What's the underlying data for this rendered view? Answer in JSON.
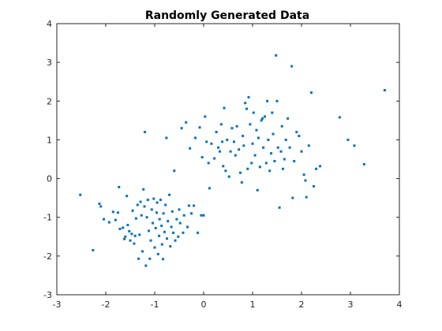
{
  "chart_data": {
    "type": "scatter",
    "title": "Randomly Generated Data",
    "xlabel": "",
    "ylabel": "",
    "xlim": [
      -3,
      4
    ],
    "ylim": [
      -3,
      4
    ],
    "x_ticks": [
      -3,
      -2,
      -1,
      0,
      1,
      2,
      3,
      4
    ],
    "y_ticks": [
      -3,
      -2,
      -1,
      0,
      1,
      2,
      3,
      4
    ],
    "grid": false,
    "marker_color": "#0072BD",
    "series": [
      {
        "points": [
          [
            -2.52,
            -0.42
          ],
          [
            -2.26,
            -1.85
          ],
          [
            -2.13,
            -0.65
          ],
          [
            -2.1,
            -0.72
          ],
          [
            -2.04,
            -1.05
          ],
          [
            -1.93,
            -1.13
          ],
          [
            -1.85,
            -0.86
          ],
          [
            -1.8,
            -1.07
          ],
          [
            -1.75,
            -0.88
          ],
          [
            -1.73,
            -0.22
          ],
          [
            -1.71,
            -1.3
          ],
          [
            -1.65,
            -1.27
          ],
          [
            -1.62,
            -1.56
          ],
          [
            -1.6,
            -1.5
          ],
          [
            -1.57,
            -0.45
          ],
          [
            -1.55,
            -1.2
          ],
          [
            -1.52,
            -1.36
          ],
          [
            -1.5,
            -1.6
          ],
          [
            -1.47,
            -1.43
          ],
          [
            -1.45,
            -0.83
          ],
          [
            -1.42,
            -1.68
          ],
          [
            -1.4,
            -1.48
          ],
          [
            -1.38,
            -1.03
          ],
          [
            -1.35,
            -0.68
          ],
          [
            -1.33,
            -2.07
          ],
          [
            -1.31,
            -1.45
          ],
          [
            -1.29,
            -0.6
          ],
          [
            -1.27,
            -0.95
          ],
          [
            -1.25,
            -1.88
          ],
          [
            -1.23,
            -0.28
          ],
          [
            -1.21,
            -0.72
          ],
          [
            -1.2,
            1.2
          ],
          [
            -1.18,
            -2.25
          ],
          [
            -1.16,
            -1.0
          ],
          [
            -1.14,
            -0.55
          ],
          [
            -1.12,
            -1.35
          ],
          [
            -1.1,
            -2.07
          ],
          [
            -1.08,
            -1.6
          ],
          [
            -1.06,
            -0.8
          ],
          [
            -1.04,
            -1.15
          ],
          [
            -1.02,
            -0.52
          ],
          [
            -1.0,
            -1.78
          ],
          [
            -0.98,
            -1.28
          ],
          [
            -0.96,
            -0.88
          ],
          [
            -0.95,
            -0.62
          ],
          [
            -0.93,
            -1.95
          ],
          [
            -0.91,
            -1.48
          ],
          [
            -0.9,
            -1.05
          ],
          [
            -0.88,
            -0.55
          ],
          [
            -0.86,
            -1.22
          ],
          [
            -0.85,
            -1.7
          ],
          [
            -0.83,
            -2.08
          ],
          [
            -0.82,
            -0.9
          ],
          [
            -0.8,
            -1.38
          ],
          [
            -0.78,
            -0.68
          ],
          [
            -0.76,
            1.05
          ],
          [
            -0.75,
            -1.55
          ],
          [
            -0.73,
            -1.1
          ],
          [
            -0.7,
            -0.42
          ],
          [
            -0.68,
            -1.75
          ],
          [
            -0.66,
            -1.25
          ],
          [
            -0.64,
            -0.85
          ],
          [
            -0.62,
            -1.4
          ],
          [
            -0.6,
            0.2
          ],
          [
            -0.58,
            -1.6
          ],
          [
            -0.55,
            -1.05
          ],
          [
            -0.52,
            -1.5
          ],
          [
            -0.5,
            -0.8
          ],
          [
            -0.48,
            -1.15
          ],
          [
            -0.45,
            1.3
          ],
          [
            -0.42,
            -1.4
          ],
          [
            -0.4,
            -0.95
          ],
          [
            -0.36,
            1.45
          ],
          [
            -0.33,
            -1.25
          ],
          [
            -0.3,
            -0.7
          ],
          [
            -0.28,
            0.78
          ],
          [
            -0.25,
            -0.9
          ],
          [
            -0.2,
            -0.7
          ],
          [
            -0.17,
            1.05
          ],
          [
            -0.12,
            -1.4
          ],
          [
            -0.08,
            1.32
          ],
          [
            -0.05,
            -0.95
          ],
          [
            -0.03,
            0.55
          ],
          [
            0.0,
            -0.95
          ],
          [
            0.03,
            1.6
          ],
          [
            0.06,
            0.95
          ],
          [
            0.1,
            0.4
          ],
          [
            0.12,
            -0.25
          ],
          [
            0.16,
            0.9
          ],
          [
            0.22,
            0.52
          ],
          [
            0.26,
            1.2
          ],
          [
            0.3,
            0.8
          ],
          [
            0.33,
            0.7
          ],
          [
            0.36,
            1.4
          ],
          [
            0.38,
            0.95
          ],
          [
            0.4,
            0.32
          ],
          [
            0.42,
            1.82
          ],
          [
            0.45,
            0.2
          ],
          [
            0.48,
            1.0
          ],
          [
            0.52,
            0.05
          ],
          [
            0.55,
            0.7
          ],
          [
            0.58,
            1.3
          ],
          [
            0.62,
            0.95
          ],
          [
            0.65,
            0.6
          ],
          [
            0.68,
            1.35
          ],
          [
            0.72,
            0.75
          ],
          [
            0.75,
            0.15
          ],
          [
            0.78,
            -0.1
          ],
          [
            0.8,
            1.1
          ],
          [
            0.82,
            0.85
          ],
          [
            0.85,
            1.95
          ],
          [
            0.88,
            1.8
          ],
          [
            0.9,
            0.25
          ],
          [
            0.92,
            2.1
          ],
          [
            0.95,
            1.4
          ],
          [
            0.98,
            0.4
          ],
          [
            1.0,
            0.9
          ],
          [
            1.02,
            1.7
          ],
          [
            1.05,
            0.6
          ],
          [
            1.08,
            1.25
          ],
          [
            1.1,
            -0.3
          ],
          [
            1.12,
            1.05
          ],
          [
            1.15,
            0.3
          ],
          [
            1.18,
            1.5
          ],
          [
            1.2,
            1.55
          ],
          [
            1.22,
            0.8
          ],
          [
            1.25,
            1.6
          ],
          [
            1.28,
            0.4
          ],
          [
            1.3,
            2.0
          ],
          [
            1.32,
            1.0
          ],
          [
            1.35,
            0.2
          ],
          [
            1.38,
            0.65
          ],
          [
            1.4,
            1.7
          ],
          [
            1.42,
            1.15
          ],
          [
            1.45,
            0.45
          ],
          [
            1.48,
            3.18
          ],
          [
            1.5,
            2.0
          ],
          [
            1.52,
            0.8
          ],
          [
            1.55,
            -0.75
          ],
          [
            1.58,
            0.7
          ],
          [
            1.6,
            1.35
          ],
          [
            1.62,
            0.25
          ],
          [
            1.65,
            0.5
          ],
          [
            1.68,
            1.0
          ],
          [
            1.72,
            1.55
          ],
          [
            1.76,
            0.8
          ],
          [
            1.8,
            2.9
          ],
          [
            1.82,
            -0.5
          ],
          [
            1.85,
            0.45
          ],
          [
            1.9,
            1.2
          ],
          [
            1.95,
            1.1
          ],
          [
            2.0,
            0.7
          ],
          [
            2.05,
            0.1
          ],
          [
            2.08,
            -0.05
          ],
          [
            2.1,
            -0.48
          ],
          [
            2.15,
            0.85
          ],
          [
            2.2,
            2.22
          ],
          [
            2.25,
            -0.2
          ],
          [
            2.3,
            0.25
          ],
          [
            2.38,
            0.32
          ],
          [
            2.78,
            1.58
          ],
          [
            2.95,
            1.0
          ],
          [
            3.08,
            0.85
          ],
          [
            3.28,
            0.37
          ],
          [
            3.7,
            2.28
          ]
        ]
      }
    ]
  }
}
